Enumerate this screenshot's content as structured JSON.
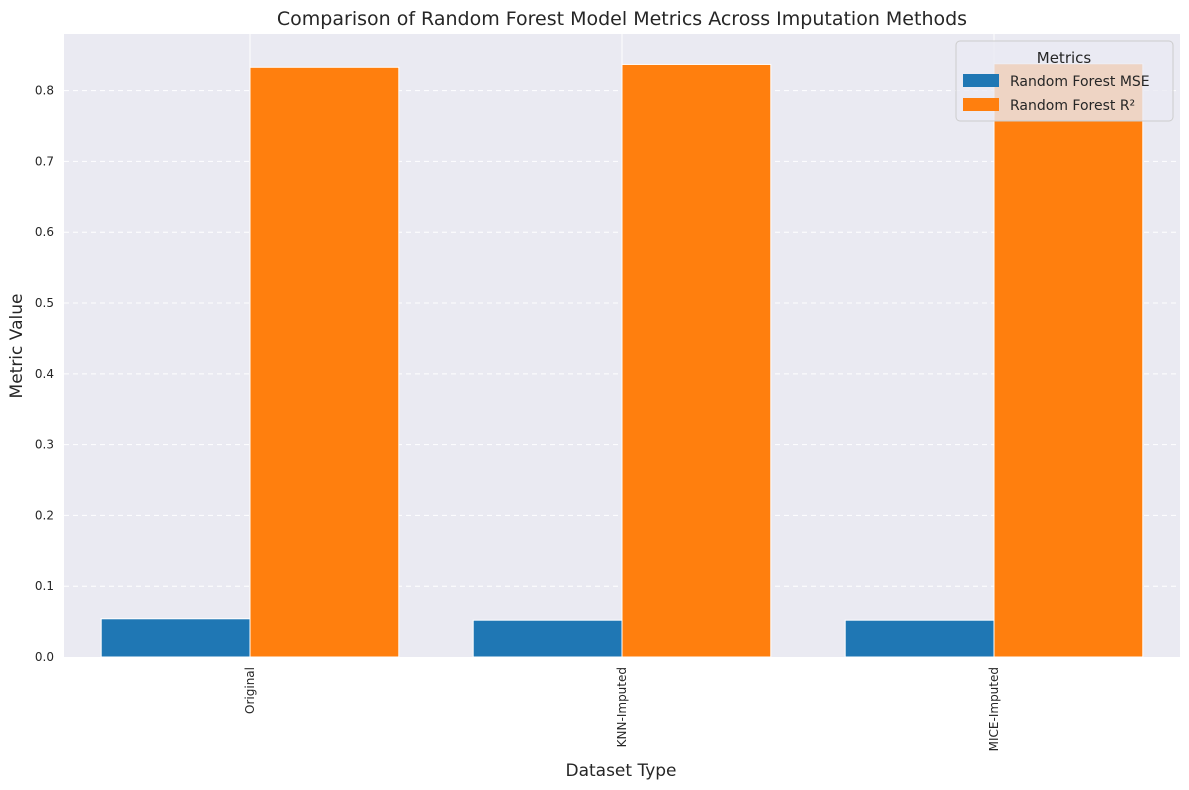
{
  "chart_data": {
    "type": "bar",
    "title": "Comparison of Random Forest Model Metrics Across Imputation Methods",
    "xlabel": "Dataset Type",
    "ylabel": "Metric Value",
    "categories": [
      "Original",
      "KNN-Imputed",
      "MICE-Imputed"
    ],
    "series": [
      {
        "name": "Random Forest MSE",
        "color": "#1f77b4",
        "values": [
          0.054,
          0.052,
          0.052
        ]
      },
      {
        "name": "Random Forest R²",
        "color": "#ff7f0e",
        "values": [
          0.833,
          0.837,
          0.838
        ]
      }
    ],
    "ylim": [
      0,
      0.88
    ],
    "yticks": [
      "0.0",
      "0.1",
      "0.2",
      "0.3",
      "0.4",
      "0.5",
      "0.6",
      "0.7",
      "0.8"
    ],
    "grid": true,
    "legend": {
      "title": "Metrics",
      "placement": "top-right"
    },
    "colors": {
      "plot_background": "#eaeaf2",
      "grid": "#ffffff"
    }
  }
}
